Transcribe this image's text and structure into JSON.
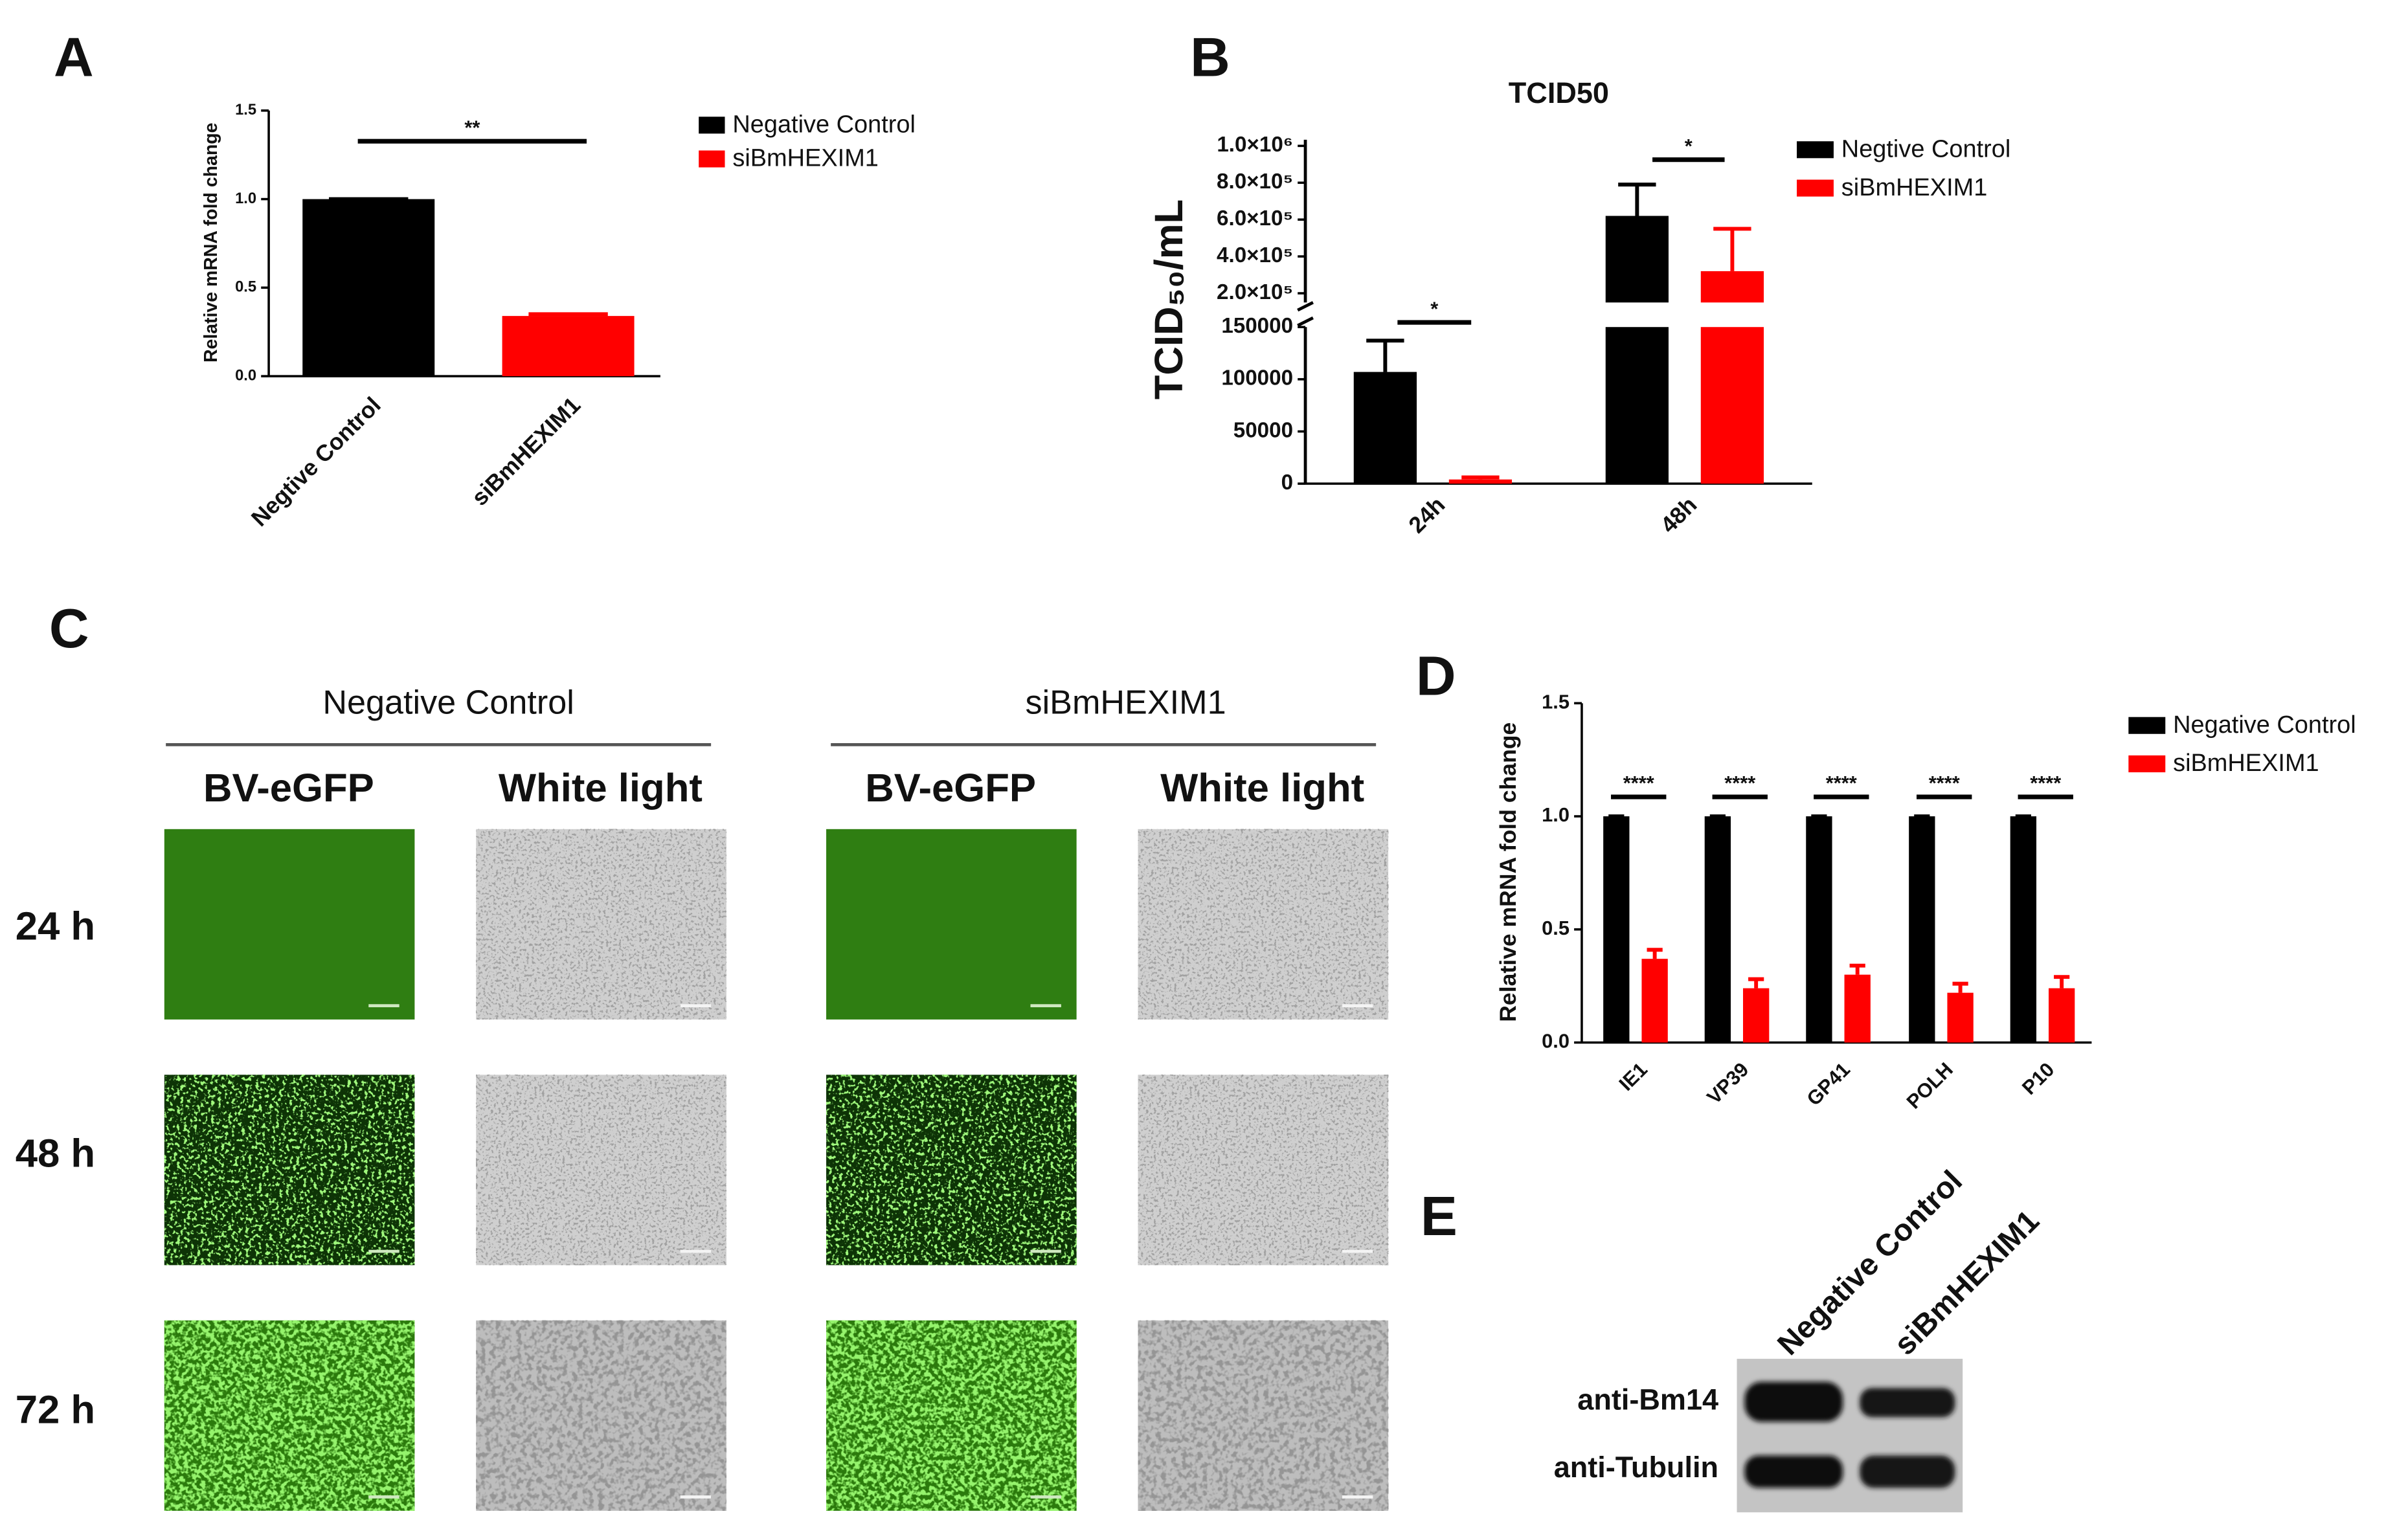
{
  "panel_labels": [
    "A",
    "B",
    "C",
    "D",
    "E"
  ],
  "chart_data": [
    {
      "type": "bar",
      "ylabel": "Relative mRNA fold change",
      "categories": [
        "Negtive Control",
        "siBmHEXIM1"
      ],
      "series": [
        {
          "name": "Negative Control",
          "color": "#000000",
          "values": [
            1.0,
            null
          ],
          "errors": [
            0,
            null
          ]
        },
        {
          "name": "siBmHEXIM1",
          "color": "#ff0000",
          "values": [
            null,
            0.34
          ],
          "errors": [
            null,
            0.01
          ]
        }
      ],
      "ylim": [
        0,
        1.5
      ],
      "yticks": [
        {
          "value": 0,
          "label": "0.0"
        },
        {
          "value": 0.5,
          "label": "0.5"
        },
        {
          "value": 1,
          "label": "1.0"
        },
        {
          "value": 1.5,
          "label": "1.5"
        }
      ],
      "annotations": [
        "**"
      ],
      "legend": "right"
    },
    {
      "type": "bar",
      "title": "TCID50",
      "ylabel": "TCID₅₀/mL",
      "categories": [
        "24h",
        "48h"
      ],
      "series": [
        {
          "name": "Negtive Control",
          "color": "#000000",
          "values": [
            107000,
            620000
          ],
          "errors": [
            30000,
            170000
          ]
        },
        {
          "name": "siBmHEXIM1",
          "color": "#ff0000",
          "values": [
            4000,
            320000
          ],
          "errors": [
            2000,
            230000
          ]
        }
      ],
      "ylim": [
        0,
        1000000
      ],
      "ybreak": 150000,
      "yticks": [
        0,
        50000,
        100000,
        150000,
        {
          "value": 200000,
          "label": "2.0×10⁵"
        },
        {
          "value": 400000,
          "label": "4.0×10⁵"
        },
        {
          "value": 600000,
          "label": "6.0×10⁵"
        },
        {
          "value": 800000,
          "label": "8.0×10⁵"
        },
        {
          "value": 1000000,
          "label": "1.0×10⁶"
        }
      ],
      "annotations": [
        "*",
        "*"
      ],
      "legend": "right"
    },
    {
      "type": "bar",
      "ylabel": "Relative mRNA fold change",
      "categories": [
        "IE1",
        "VP39",
        "GP41",
        "POLH",
        "P10"
      ],
      "series": [
        {
          "name": "Negative Control",
          "color": "#000000",
          "values": [
            1.0,
            1.0,
            1.0,
            1.0,
            1.0
          ],
          "errors": [
            0,
            0,
            0,
            0,
            0
          ]
        },
        {
          "name": "siBmHEXIM1",
          "color": "#ff0000",
          "values": [
            0.37,
            0.24,
            0.3,
            0.22,
            0.24
          ],
          "errors": [
            0.04,
            0.04,
            0.04,
            0.04,
            0.05
          ]
        }
      ],
      "ylim": [
        0,
        1.5
      ],
      "yticks": [
        {
          "value": 0,
          "label": "0.0"
        },
        {
          "value": 0.5,
          "label": "0.5"
        },
        {
          "value": 1,
          "label": "1.0"
        },
        {
          "value": 1.5,
          "label": "1.5"
        }
      ],
      "annotations": [
        "****",
        "****",
        "****",
        "****",
        "****"
      ],
      "legend": "right"
    }
  ],
  "figure_c": {
    "groups": [
      "Negative Control",
      "siBmHEXIM1"
    ],
    "channels": [
      "BV-eGFP",
      "White light"
    ],
    "rows": [
      "24 h",
      "48 h",
      "72 h"
    ]
  },
  "blot": {
    "lanes": [
      "Negative Control",
      "siBmHEXIM1"
    ],
    "antibodies": [
      "anti-Bm14",
      "anti-Tubulin"
    ]
  }
}
